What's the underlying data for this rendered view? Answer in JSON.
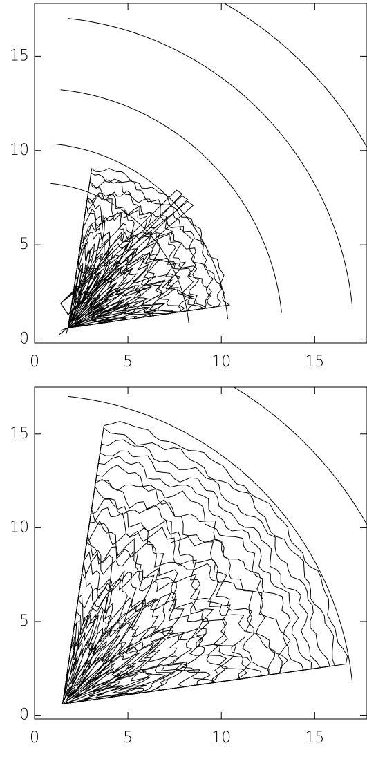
{
  "chart_data": [
    {
      "type": "contour",
      "xlim": [
        0,
        17.8
      ],
      "ylim": [
        -0.2,
        17.8
      ],
      "xticks": [
        0,
        5,
        10,
        15
      ],
      "yticks": [
        0,
        5,
        10,
        15
      ]
    },
    {
      "type": "contour",
      "xlim": [
        0,
        17.8
      ],
      "ylim": [
        -0.2,
        17.5
      ],
      "xticks": [
        0,
        5,
        10,
        15
      ],
      "yticks": [
        0,
        5,
        10,
        15
      ]
    }
  ]
}
